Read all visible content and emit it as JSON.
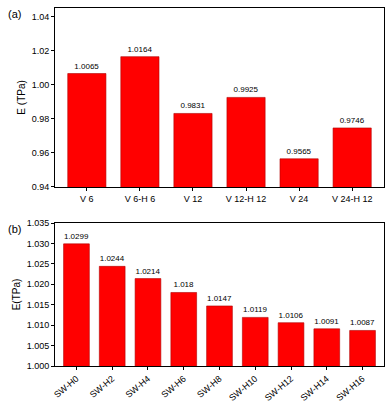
{
  "chart_data": [
    {
      "type": "bar",
      "title": "(a)",
      "y_label": "E (TPa)",
      "categories": [
        "V 6",
        "V 6-H 6",
        "V 12",
        "V 12-H 12",
        "V 24",
        "V 24-H 12"
      ],
      "values": [
        1.0065,
        1.0164,
        0.9831,
        0.9925,
        0.9565,
        0.9746
      ],
      "color": "#ff0000",
      "ylim": [
        0.94,
        1.045
      ],
      "yticks": [
        0.94,
        0.96,
        0.98,
        {
          "value": 1,
          "label": "1.00"
        },
        1.02,
        1.04
      ],
      "data_labels": true,
      "grid": false
    },
    {
      "type": "bar",
      "title": "(b)",
      "y_label": "E(TPa)",
      "categories": [
        "SW-H0",
        "SW-H2",
        "SW-H4",
        "SW-H6",
        "SW-H8",
        "SW-H10",
        "SW-H12",
        "SW-H14",
        "SW-H16"
      ],
      "values": [
        1.0299,
        1.0244,
        1.0214,
        1.018,
        1.0147,
        1.0119,
        1.0106,
        1.0091,
        1.0087
      ],
      "color": "#ff0000",
      "ylim": [
        1.0,
        1.035
      ],
      "yticks": [
        {
          "value": 1,
          "label": "1.000"
        },
        1.005,
        {
          "value": 1.01,
          "label": "1.010"
        },
        1.015,
        {
          "value": 1.02,
          "label": "1.020"
        },
        1.025,
        {
          "value": 1.03,
          "label": "1.030"
        },
        1.035
      ],
      "data_labels": true,
      "grid": false
    }
  ]
}
